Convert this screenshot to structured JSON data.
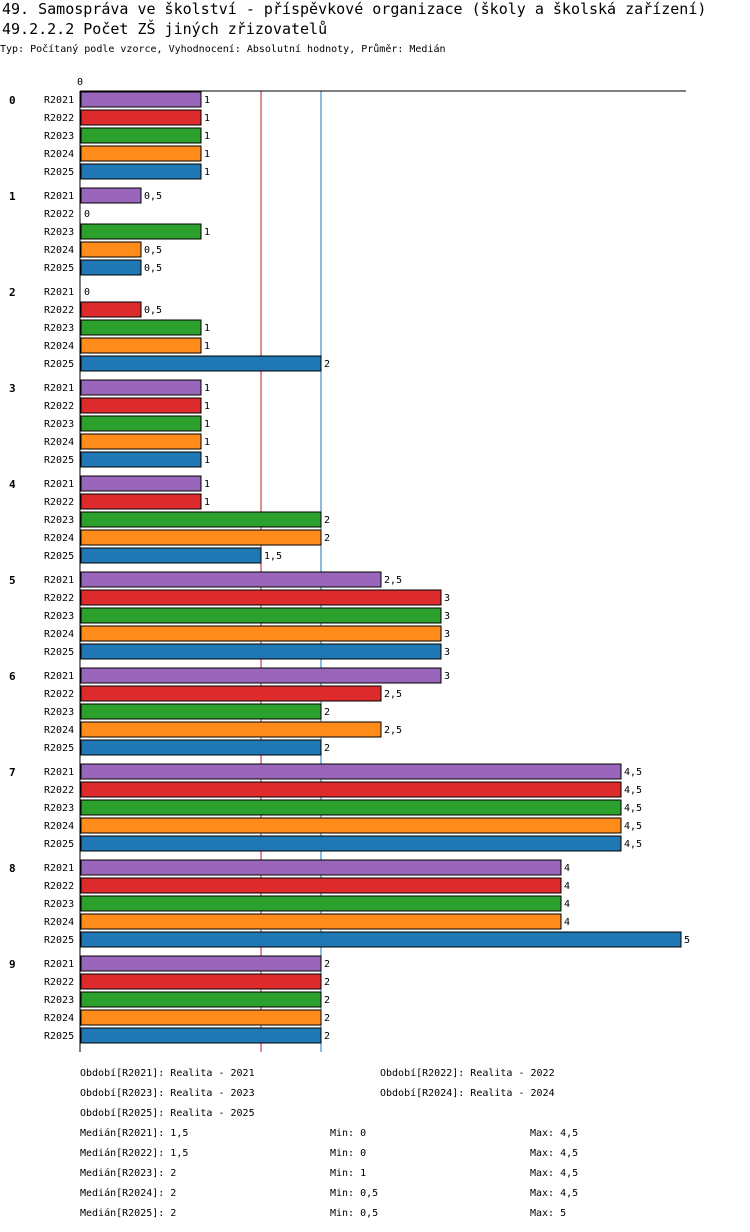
{
  "header": {
    "title_line1": "49. Samospráva ve školství - příspěvkové organizace (školy a školská zařízení)",
    "title_line2": "49.2.2.2 Počet ZŠ jiných zřizovatelů",
    "subtitle": "Typ: Počítaný podle vzorce, Vyhodnocení: Absolutní hodnoty, Průměr: Medián"
  },
  "chart_data": {
    "type": "bar",
    "orientation": "horizontal",
    "title": "49.2.2.2 Počet ZŠ jiných zřizovatelů",
    "axis_zero_label": "0",
    "xlim": [
      0,
      5
    ],
    "categories": [
      "0",
      "1",
      "2",
      "3",
      "4",
      "5",
      "6",
      "7",
      "8",
      "9"
    ],
    "series": [
      {
        "name": "R2021",
        "color": "#9966bb",
        "values": [
          1,
          0.5,
          0,
          1,
          1,
          2.5,
          3,
          4.5,
          4,
          2
        ]
      },
      {
        "name": "R2022",
        "color": "#dd2a2a",
        "values": [
          1,
          0,
          0.5,
          1,
          1,
          3,
          2.5,
          4.5,
          4,
          2
        ]
      },
      {
        "name": "R2023",
        "color": "#2ca02c",
        "values": [
          1,
          1,
          1,
          1,
          2,
          3,
          2,
          4.5,
          4,
          2
        ]
      },
      {
        "name": "R2024",
        "color": "#ff8c1a",
        "values": [
          1,
          0.5,
          1,
          1,
          2,
          3,
          2.5,
          4.5,
          4,
          2
        ]
      },
      {
        "name": "R2025",
        "color": "#1f77b4",
        "values": [
          1,
          0.5,
          2,
          1,
          1.5,
          3,
          2,
          4.5,
          5,
          2
        ]
      }
    ],
    "reference_lines": [
      {
        "value": 1.5,
        "color": "#bb2222"
      },
      {
        "value": 2,
        "color": "#1f77b4"
      }
    ]
  },
  "legend": [
    "Období[R2021]: Realita - 2021",
    "Období[R2022]: Realita - 2022",
    "Období[R2023]: Realita - 2023",
    "Období[R2024]: Realita - 2024",
    "Období[R2025]: Realita - 2025"
  ],
  "stats": [
    {
      "median": "Medián[R2021]: 1,5",
      "min": "Min: 0",
      "max": "Max: 4,5"
    },
    {
      "median": "Medián[R2022]: 1,5",
      "min": "Min: 0",
      "max": "Max: 4,5"
    },
    {
      "median": "Medián[R2023]: 2",
      "min": "Min: 1",
      "max": "Max: 4,5"
    },
    {
      "median": "Medián[R2024]: 2",
      "min": "Min: 0,5",
      "max": "Max: 4,5"
    },
    {
      "median": "Medián[R2025]: 2",
      "min": "Min: 0,5",
      "max": "Max: 5"
    }
  ]
}
